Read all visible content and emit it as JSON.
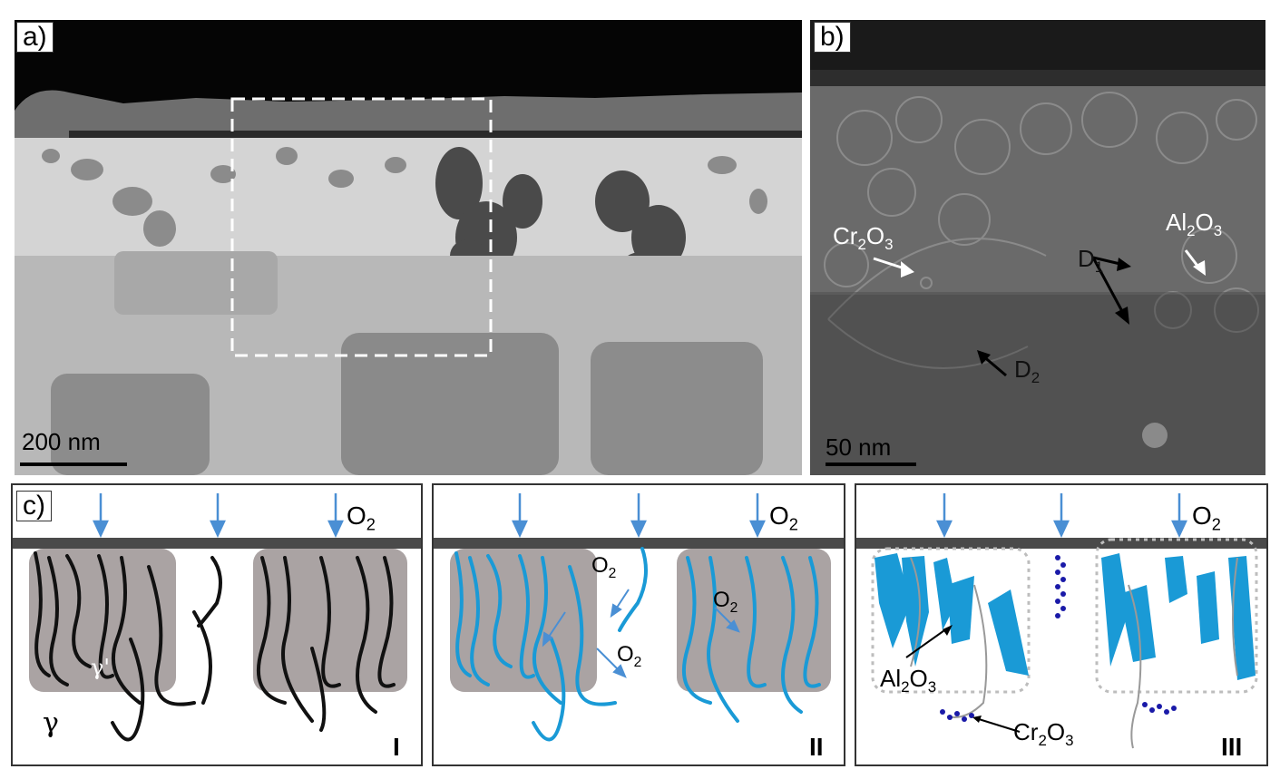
{
  "panels": {
    "a": {
      "label": "a)",
      "scale": "200 nm"
    },
    "b": {
      "label": "b)",
      "scale": "50 nm",
      "annotations": {
        "cr2o3": "Cr",
        "cr_sub1": "2",
        "cr_o": "O",
        "cr_sub2": "3",
        "al2o3": "Al",
        "al_sub1": "2",
        "al_o": "O",
        "al_sub2": "3",
        "d1": "D",
        "d1_sub": "1",
        "d2": "D",
        "d2_sub": "2"
      }
    },
    "c": {
      "label": "c)",
      "o2_main": "O",
      "o2_sub": "2",
      "gamma": "γ",
      "gamma_prime": "γ'",
      "stage_I": "I",
      "stage_II": "II",
      "stage_III": "III",
      "al2o3": "Al",
      "al_sub1": "2",
      "al_o": "O",
      "al_sub2": "3",
      "cr2o3": "Cr",
      "cr_sub1": "2",
      "cr_o": "O",
      "cr_sub2": "3"
    }
  },
  "colors": {
    "oxide_blue": "#1a9ad6",
    "arrow_blue": "#4a8fd4",
    "gamma_prime_fill": "#aaa3a3",
    "cr_dots": "#1a1aa8"
  }
}
